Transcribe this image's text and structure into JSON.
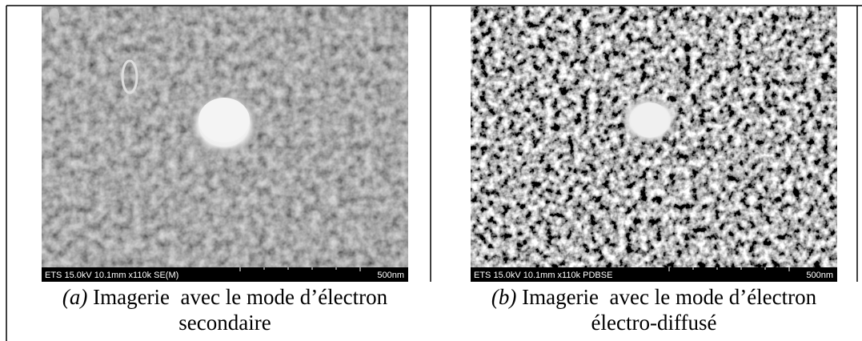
{
  "figures": [
    {
      "label": "(a)",
      "caption_lines": [
        "Imagerie  avec le mode d’électron",
        "secondaire"
      ],
      "info": "ETS 15.0kV 10.1mm x110k SE(M)",
      "scale": "500nm"
    },
    {
      "label": "(b)",
      "caption_lines": [
        "Imagerie  avec le mode d’électron",
        "électro-diffusé"
      ],
      "info": "ETS 15.0kV 10.1mm x110k PDBSE",
      "scale": "500nm"
    }
  ]
}
